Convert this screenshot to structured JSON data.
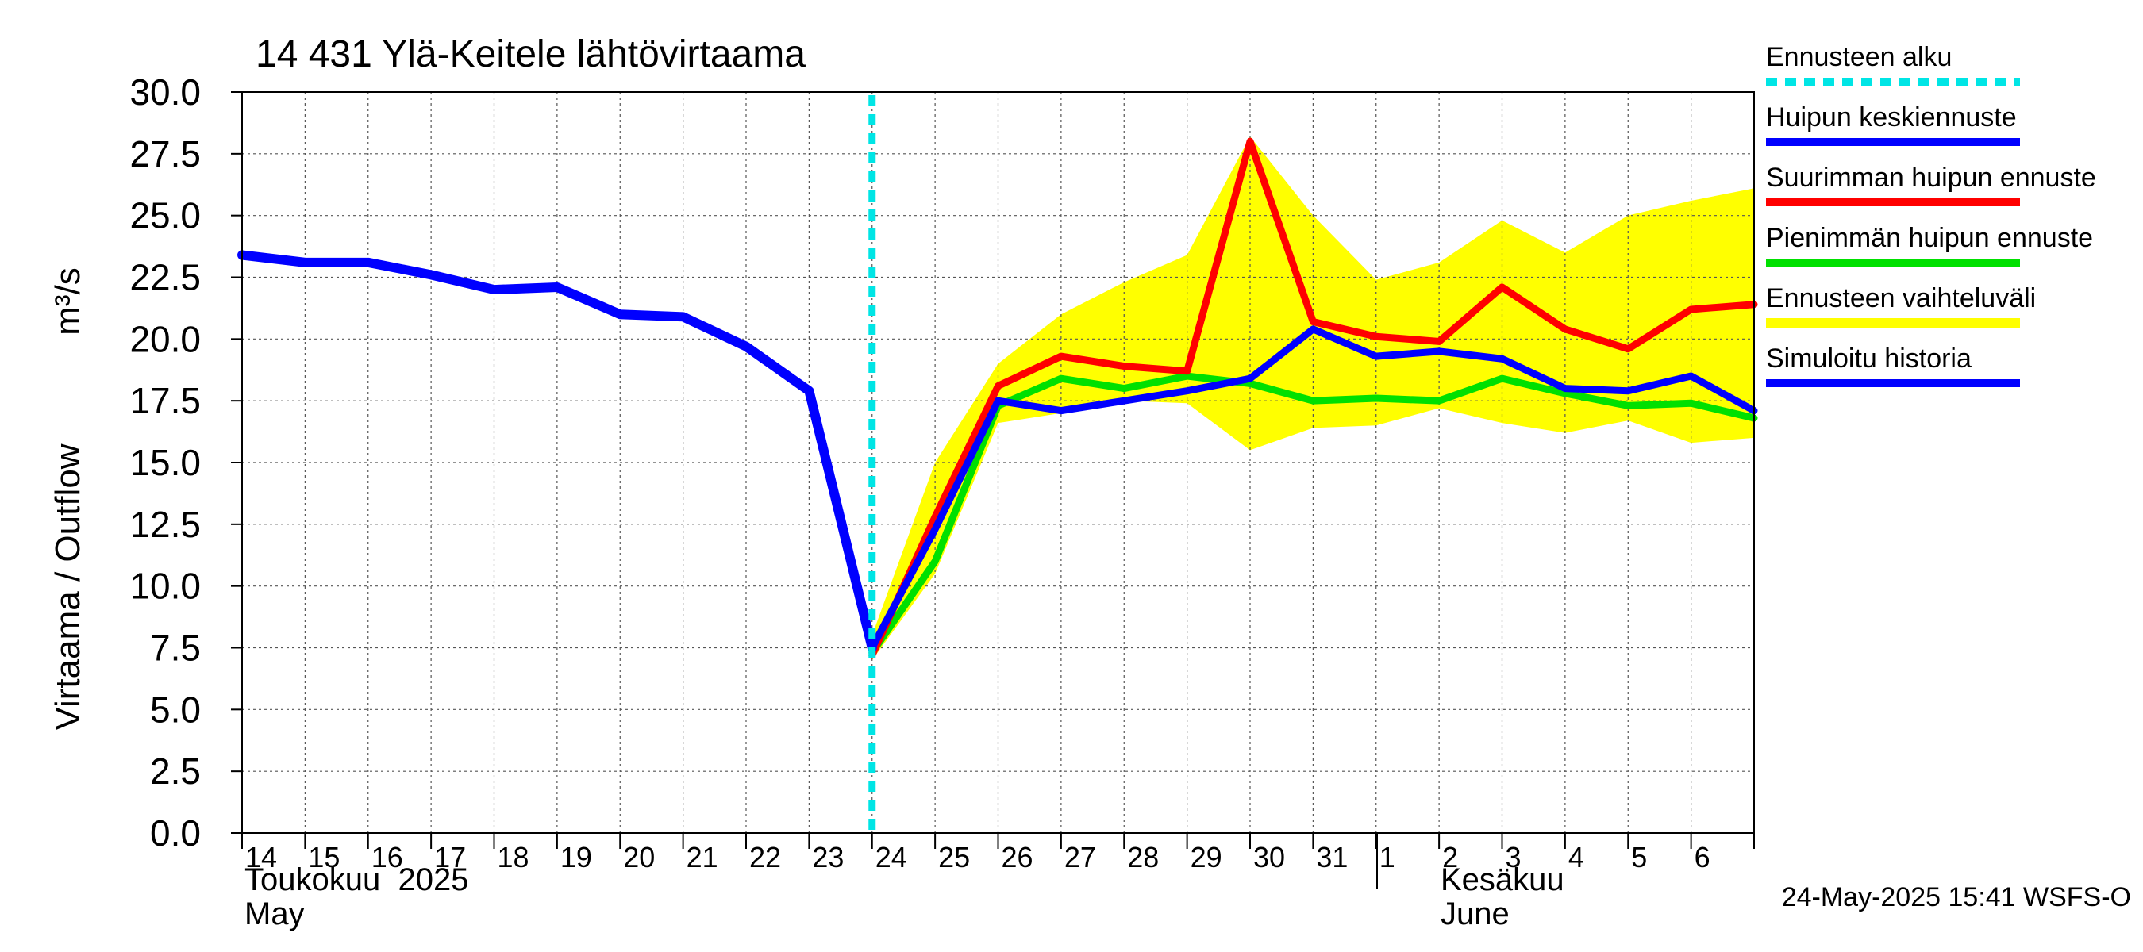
{
  "chart_data": {
    "type": "line",
    "title": "14 431 Ylä-Keitele lähtövirtaama",
    "ylabel": "Virtaama / Outflow",
    "yunit": "m³/s",
    "ylim": [
      0,
      30
    ],
    "yticks": [
      "0.0",
      "2.5",
      "5.0",
      "7.5",
      "10.0",
      "12.5",
      "15.0",
      "17.5",
      "20.0",
      "22.5",
      "25.0",
      "27.5",
      "30.0"
    ],
    "xlim": [
      "2025-05-14",
      "2025-06-07"
    ],
    "xtick_labels": [
      "14",
      "15",
      "16",
      "17",
      "18",
      "19",
      "20",
      "21",
      "22",
      "23",
      "24",
      "25",
      "26",
      "27",
      "28",
      "29",
      "30",
      "31",
      "1",
      "2",
      "3",
      "4",
      "5",
      "6"
    ],
    "month_labels": {
      "may_fi": "Toukokuu  2025",
      "may_en": "May",
      "june_fi": "Kesäkuu",
      "june_en": "June"
    },
    "forecast_start": "2025-05-24",
    "grid": true,
    "legend_placement": "right",
    "legend": [
      {
        "key": "start",
        "label": "Ennusteen alku",
        "color": "#00e5e5",
        "style": "dashed"
      },
      {
        "key": "mean",
        "label": "Huipun keskiennuste",
        "color": "#0000ff",
        "style": "solid"
      },
      {
        "key": "max",
        "label": "Suurimman huipun ennuste",
        "color": "#ff0000",
        "style": "solid"
      },
      {
        "key": "min",
        "label": "Pienimmän huipun ennuste",
        "color": "#00e000",
        "style": "solid"
      },
      {
        "key": "range",
        "label": "Ennusteen vaihteluväli",
        "color": "#ffff00",
        "style": "band"
      },
      {
        "key": "hist",
        "label": "Simuloitu historia",
        "color": "#0000ff",
        "style": "solid"
      }
    ],
    "series": {
      "history": {
        "dates": [
          "2025-05-14",
          "2025-05-15",
          "2025-05-16",
          "2025-05-17",
          "2025-05-18",
          "2025-05-19",
          "2025-05-20",
          "2025-05-21",
          "2025-05-22",
          "2025-05-23",
          "2025-05-24"
        ],
        "values": [
          23.4,
          23.1,
          23.1,
          22.6,
          22.0,
          22.1,
          21.0,
          20.9,
          19.7,
          17.9,
          7.5
        ]
      },
      "range_upper": {
        "dates": [
          "2025-05-24",
          "2025-05-25",
          "2025-05-26",
          "2025-05-27",
          "2025-05-28",
          "2025-05-29",
          "2025-05-30",
          "2025-05-31",
          "2025-06-01",
          "2025-06-02",
          "2025-06-03",
          "2025-06-04",
          "2025-06-05",
          "2025-06-06",
          "2025-06-07"
        ],
        "values": [
          8.0,
          15.0,
          19.0,
          21.0,
          22.3,
          23.4,
          28.2,
          25.0,
          22.4,
          23.1,
          24.8,
          23.5,
          25.0,
          25.6,
          26.1
        ]
      },
      "range_lower": {
        "dates": [
          "2025-05-24",
          "2025-05-25",
          "2025-05-26",
          "2025-05-27",
          "2025-05-28",
          "2025-05-29",
          "2025-05-30",
          "2025-05-31",
          "2025-06-01",
          "2025-06-02",
          "2025-06-03",
          "2025-06-04",
          "2025-06-05",
          "2025-06-06",
          "2025-06-07"
        ],
        "values": [
          7.0,
          10.5,
          16.6,
          17.0,
          17.5,
          17.4,
          15.5,
          16.4,
          16.5,
          17.2,
          16.6,
          16.2,
          16.7,
          15.8,
          16.0
        ]
      },
      "max": {
        "dates": [
          "2025-05-24",
          "2025-05-25",
          "2025-05-26",
          "2025-05-27",
          "2025-05-28",
          "2025-05-29",
          "2025-05-30",
          "2025-05-31",
          "2025-06-01",
          "2025-06-02",
          "2025-06-03",
          "2025-06-04",
          "2025-06-05",
          "2025-06-06",
          "2025-06-07"
        ],
        "values": [
          7.2,
          12.8,
          18.1,
          19.3,
          18.9,
          18.7,
          28.0,
          20.7,
          20.1,
          19.9,
          22.1,
          20.4,
          19.6,
          21.2,
          21.4
        ]
      },
      "min": {
        "dates": [
          "2025-05-24",
          "2025-05-25",
          "2025-05-26",
          "2025-05-27",
          "2025-05-28",
          "2025-05-29",
          "2025-05-30",
          "2025-05-31",
          "2025-06-01",
          "2025-06-02",
          "2025-06-03",
          "2025-06-04",
          "2025-06-05",
          "2025-06-06",
          "2025-06-07"
        ],
        "values": [
          7.3,
          11.0,
          17.3,
          18.4,
          18.0,
          18.5,
          18.2,
          17.5,
          17.6,
          17.5,
          18.4,
          17.8,
          17.3,
          17.4,
          16.8
        ]
      },
      "mean": {
        "dates": [
          "2025-05-24",
          "2025-05-25",
          "2025-05-26",
          "2025-05-27",
          "2025-05-28",
          "2025-05-29",
          "2025-05-30",
          "2025-05-31",
          "2025-06-01",
          "2025-06-02",
          "2025-06-03",
          "2025-06-04",
          "2025-06-05",
          "2025-06-06",
          "2025-06-07"
        ],
        "values": [
          7.5,
          12.3,
          17.5,
          17.1,
          17.5,
          17.9,
          18.4,
          20.4,
          19.3,
          19.5,
          19.2,
          18.0,
          17.9,
          18.5,
          17.1
        ]
      }
    },
    "timestamp": "24-May-2025 15:41 WSFS-O"
  }
}
